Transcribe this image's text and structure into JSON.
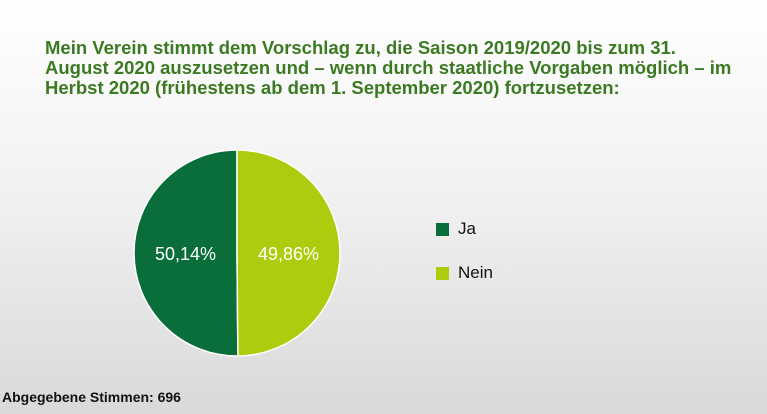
{
  "chart_data": {
    "type": "pie",
    "title": "Mein Verein stimmt dem Vorschlag zu, die Saison 2019/2020 bis zum 31. August 2020 auszusetzen und – wenn durch staatliche Vorgaben möglich – im Herbst 2020 (frühestens ab dem 1. September 2020) fortzusetzen:",
    "categories": [
      "Ja",
      "Nein"
    ],
    "values": [
      50.14,
      49.86
    ],
    "data_labels": [
      "50,14%",
      "49,86%"
    ],
    "colors": [
      "#0a6e3a",
      "#afcb0d"
    ],
    "legend_position": "right"
  },
  "footer": {
    "text": "Abgegebene Stimmen: 696"
  }
}
